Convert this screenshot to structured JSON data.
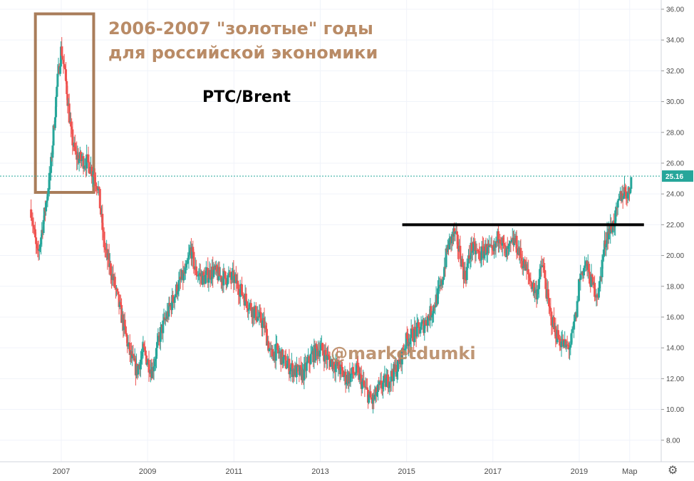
{
  "annotations": {
    "headline_line1": "2006-2007 \"золотые\" годы",
    "headline_line2": "для российской экономики",
    "pair": "PTC/Brent",
    "watermark": "@marketdumki"
  },
  "colors": {
    "up": "#26a69a",
    "down": "#ef5350",
    "box": "#a97d5a",
    "headline": "#b98b66",
    "price_line": "#26a69a",
    "level_line": "#000000",
    "grid": "#f0f3fa"
  },
  "chart_data": {
    "type": "candlestick",
    "title": "PTC/Brent",
    "x_tick_labels": [
      "2007",
      "2009",
      "2011",
      "2013",
      "2015",
      "2017",
      "2019",
      "Мар"
    ],
    "x_tick_years": [
      2007,
      2009,
      2011,
      2013,
      2015,
      2017,
      2019,
      2020.17
    ],
    "y_tick_labels": [
      "8.00",
      "10.00",
      "12.00",
      "14.00",
      "16.00",
      "18.00",
      "20.00",
      "22.00",
      "24.00",
      "26.00",
      "28.00",
      "30.00",
      "32.00",
      "34.00",
      "36.00"
    ],
    "ylim": [
      6.6,
      36.6
    ],
    "xlim": [
      2005.58,
      2020.9
    ],
    "last_price": 25.16,
    "last_price_label": "25.16",
    "horizontal_level": {
      "value": 22.0,
      "from": 2014.9,
      "to": 2020.5
    },
    "highlight_box": {
      "from": 2006.4,
      "to": 2007.75,
      "low": 24.1,
      "high": 35.7
    },
    "anchors": [
      [
        2006.3,
        23.0
      ],
      [
        2006.45,
        19.8
      ],
      [
        2006.6,
        22.5
      ],
      [
        2006.75,
        25.5
      ],
      [
        2006.9,
        31.0
      ],
      [
        2007.0,
        33.5
      ],
      [
        2007.12,
        31.0
      ],
      [
        2007.22,
        28.0
      ],
      [
        2007.33,
        26.5
      ],
      [
        2007.45,
        26.2
      ],
      [
        2007.6,
        26.1
      ],
      [
        2007.75,
        25.3
      ],
      [
        2007.85,
        24.5
      ],
      [
        2008.0,
        20.5
      ],
      [
        2008.2,
        18.5
      ],
      [
        2008.4,
        16.0
      ],
      [
        2008.6,
        13.5
      ],
      [
        2008.75,
        12.5
      ],
      [
        2008.9,
        13.8
      ],
      [
        2009.1,
        12.5
      ],
      [
        2009.3,
        15.0
      ],
      [
        2009.5,
        16.5
      ],
      [
        2009.7,
        18.0
      ],
      [
        2009.9,
        19.0
      ],
      [
        2010.0,
        20.5
      ],
      [
        2010.1,
        19.0
      ],
      [
        2010.3,
        18.5
      ],
      [
        2010.5,
        19.0
      ],
      [
        2010.7,
        18.6
      ],
      [
        2011.0,
        18.5
      ],
      [
        2011.3,
        17.0
      ],
      [
        2011.5,
        16.2
      ],
      [
        2011.7,
        15.5
      ],
      [
        2011.85,
        13.5
      ],
      [
        2012.0,
        13.8
      ],
      [
        2012.2,
        13.0
      ],
      [
        2012.4,
        12.5
      ],
      [
        2012.6,
        12.3
      ],
      [
        2012.8,
        13.5
      ],
      [
        2013.0,
        14.0
      ],
      [
        2013.2,
        13.2
      ],
      [
        2013.4,
        12.8
      ],
      [
        2013.6,
        12.0
      ],
      [
        2013.85,
        12.5
      ],
      [
        2014.0,
        11.5
      ],
      [
        2014.2,
        10.5
      ],
      [
        2014.4,
        11.5
      ],
      [
        2014.6,
        12.0
      ],
      [
        2014.8,
        12.8
      ],
      [
        2015.0,
        14.5
      ],
      [
        2015.2,
        15.0
      ],
      [
        2015.4,
        15.5
      ],
      [
        2015.6,
        16.5
      ],
      [
        2015.8,
        18.0
      ],
      [
        2015.95,
        20.5
      ],
      [
        2016.1,
        21.5
      ],
      [
        2016.25,
        20.0
      ],
      [
        2016.35,
        18.5
      ],
      [
        2016.5,
        20.5
      ],
      [
        2016.7,
        20.0
      ],
      [
        2016.85,
        20.5
      ],
      [
        2017.0,
        20.0
      ],
      [
        2017.15,
        21.5
      ],
      [
        2017.3,
        20.0
      ],
      [
        2017.5,
        21.0
      ],
      [
        2017.7,
        19.5
      ],
      [
        2017.85,
        18.5
      ],
      [
        2018.0,
        17.5
      ],
      [
        2018.15,
        19.5
      ],
      [
        2018.3,
        16.5
      ],
      [
        2018.45,
        15.0
      ],
      [
        2018.55,
        14.5
      ],
      [
        2018.7,
        14.0
      ],
      [
        2018.8,
        14.2
      ],
      [
        2018.95,
        16.5
      ],
      [
        2019.0,
        18.5
      ],
      [
        2019.15,
        19.5
      ],
      [
        2019.25,
        18.5
      ],
      [
        2019.35,
        17.8
      ],
      [
        2019.45,
        17.5
      ],
      [
        2019.55,
        20.0
      ],
      [
        2019.65,
        21.5
      ],
      [
        2019.75,
        21.8
      ],
      [
        2019.85,
        22.5
      ],
      [
        2019.95,
        23.8
      ],
      [
        2020.05,
        24.2
      ],
      [
        2020.15,
        24.0
      ],
      [
        2020.22,
        25.1
      ]
    ]
  }
}
